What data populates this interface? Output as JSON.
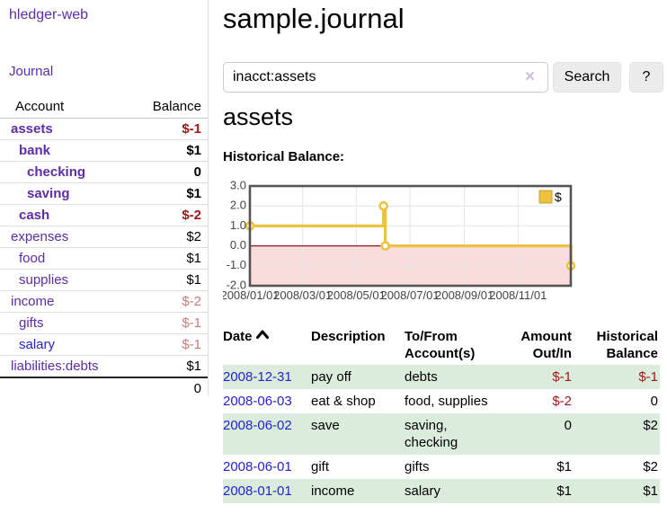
{
  "colors": {
    "purple-link": "#5e2ca5",
    "blue-link": "#2323cc",
    "negative": "#9e1616",
    "rosy": "#c47c7c",
    "row-highlight": "#dcecdc",
    "chart-line": "#edc240",
    "chart-negative-fill": "#f9dcdc",
    "chart-zero-line": "#8b1a1a",
    "chart-border": "#545454",
    "chart-grid": "#e6e6e6",
    "chart-tick-text": "#444444"
  },
  "sidebar": {
    "app_title": "hledger-web",
    "nav": {
      "journal_label": "Journal"
    },
    "accounts_table": {
      "headers": [
        "Account",
        "Balance"
      ],
      "rows": [
        {
          "account": "assets",
          "depth": 1,
          "bold": true,
          "balance": "$-1",
          "balance_style": "negative"
        },
        {
          "account": "bank",
          "depth": 2,
          "bold": true,
          "balance": "$1",
          "balance_style": "normal"
        },
        {
          "account": "checking",
          "depth": 3,
          "bold": true,
          "balance": "0",
          "balance_style": "normal"
        },
        {
          "account": "saving",
          "depth": 3,
          "bold": true,
          "balance": "$1",
          "balance_style": "normal"
        },
        {
          "account": "cash",
          "depth": 2,
          "bold": true,
          "balance": "$-2",
          "balance_style": "negative"
        },
        {
          "account": "expenses",
          "depth": 1,
          "bold": false,
          "balance": "$2",
          "balance_style": "normal"
        },
        {
          "account": "food",
          "depth": 2,
          "bold": false,
          "balance": "$1",
          "balance_style": "normal"
        },
        {
          "account": "supplies",
          "depth": 2,
          "bold": false,
          "balance": "$1",
          "balance_style": "normal"
        },
        {
          "account": "income",
          "depth": 1,
          "bold": false,
          "balance": "$-2",
          "balance_style": "rosy"
        },
        {
          "account": "gifts",
          "depth": 2,
          "bold": false,
          "balance": "$-1",
          "balance_style": "rosy"
        },
        {
          "account": "salary",
          "depth": 2,
          "bold": false,
          "link_color": "blue",
          "balance": "$-1",
          "balance_style": "rosy"
        },
        {
          "account": "liabilities:debts",
          "depth": 1,
          "bold": false,
          "balance": "$1",
          "balance_style": "normal"
        }
      ],
      "total": "0"
    }
  },
  "main": {
    "title": "sample.journal",
    "search": {
      "value": "inacct:assets",
      "clear_icon": "×",
      "button_label": "Search",
      "help_label": "?"
    },
    "account_heading": "assets",
    "chart_label": "Historical Balance:",
    "register_table": {
      "headers": [
        {
          "label": "Date",
          "sorted_asc": true,
          "align": "left"
        },
        {
          "label": "Description",
          "align": "left"
        },
        {
          "label": "To/From Account(s)",
          "align": "left"
        },
        {
          "label": "Amount Out/In",
          "align": "right"
        },
        {
          "label": "Historical Balance",
          "align": "right"
        }
      ],
      "rows": [
        {
          "date": "2008-12-31",
          "description": "pay off",
          "accounts": "debts",
          "amount": "$-1",
          "amount_negative": true,
          "balance": "$-1",
          "balance_negative": true,
          "highlight": true
        },
        {
          "date": "2008-06-03",
          "description": "eat & shop",
          "accounts": "food, supplies",
          "amount": "$-2",
          "amount_negative": true,
          "balance": "0",
          "balance_negative": false,
          "highlight": false
        },
        {
          "date": "2008-06-02",
          "description": "save",
          "accounts": "saving, checking",
          "amount": "0",
          "amount_negative": false,
          "balance": "$2",
          "balance_negative": false,
          "highlight": true
        },
        {
          "date": "2008-06-01",
          "description": "gift",
          "accounts": "gifts",
          "amount": "$1",
          "amount_negative": false,
          "balance": "$2",
          "balance_negative": false,
          "highlight": false
        },
        {
          "date": "2008-01-01",
          "description": "income",
          "accounts": "salary",
          "amount": "$1",
          "amount_negative": false,
          "balance": "$1",
          "balance_negative": false,
          "highlight": true
        }
      ]
    }
  },
  "chart_data": {
    "type": "line",
    "title": "Historical Balance:",
    "step": true,
    "x_range": [
      "2008-01-01",
      "2008-12-31"
    ],
    "ylim": [
      -2.0,
      3.0
    ],
    "y_ticks": [
      "3.0",
      "2.0",
      "1.0",
      "0.0",
      "-1.0",
      "-2.0"
    ],
    "y_tick_values": [
      3,
      2,
      1,
      0,
      -1,
      -2
    ],
    "x_ticks": [
      "2008/01/01",
      "2008/03/01",
      "2008/05/01",
      "2008/07/01",
      "2008/09/01",
      "2008/11/01"
    ],
    "x_tick_dates": [
      "2008-01-01",
      "2008-03-01",
      "2008-05-01",
      "2008-07-01",
      "2008-09-01",
      "2008-11-01"
    ],
    "grid": true,
    "negative_region_shaded": true,
    "legend": {
      "label": "$",
      "position": "top-right"
    },
    "series": [
      {
        "name": "$",
        "points": [
          [
            "2008-01-01",
            1
          ],
          [
            "2008-06-01",
            2
          ],
          [
            "2008-06-03",
            0
          ],
          [
            "2008-12-31",
            -1
          ]
        ]
      }
    ]
  }
}
